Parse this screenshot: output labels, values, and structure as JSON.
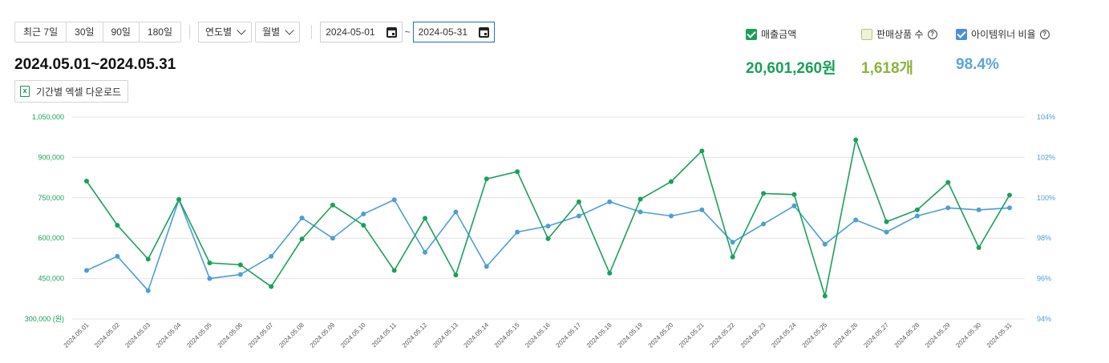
{
  "toolbar": {
    "period_buttons": [
      "최근 7일",
      "30일",
      "90일",
      "180일"
    ],
    "year_dropdown": "연도별",
    "month_dropdown": "월별",
    "start_date": "2024-05-01",
    "end_date": "2024-05-31",
    "tilde": "~"
  },
  "range_title": "2024.05.01~2024.05.31",
  "download_label": "기간별 엑셀 다운로드",
  "legend": {
    "sales": {
      "label": "매출금액",
      "checked": true,
      "color": "#1aa05a"
    },
    "units": {
      "label": "판매상품 수",
      "checked": false,
      "color": "#8db33a"
    },
    "winner": {
      "label": "아이템위너 비율",
      "checked": true,
      "color": "#4a9fd4"
    }
  },
  "stats": {
    "sales": "20,601,260원",
    "units": "1,618개",
    "winner": "98.4%"
  },
  "chart_data": {
    "type": "line",
    "categories": [
      "2024.05.01",
      "2024.05.02",
      "2024.05.03",
      "2024.05.04",
      "2024.05.05",
      "2024.05.06",
      "2024.05.07",
      "2024.05.08",
      "2024.05.09",
      "2024.05.10",
      "2024.05.11",
      "2024.05.12",
      "2024.05.13",
      "2024.05.14",
      "2024.05.15",
      "2024.05.16",
      "2024.05.17",
      "2024.05.18",
      "2024.05.19",
      "2024.05.20",
      "2024.05.21",
      "2024.05.22",
      "2024.05.23",
      "2024.05.24",
      "2024.05.25",
      "2024.05.26",
      "2024.05.27",
      "2024.05.28",
      "2024.05.29",
      "2024.05.30",
      "2024.05.31"
    ],
    "left_axis": {
      "ticks": [
        300000,
        450000,
        600000,
        750000,
        900000,
        1050000
      ],
      "tick_labels": [
        "300,000 (원)",
        "450,000",
        "600,000",
        "750,000",
        "900,000",
        "1,050,000"
      ],
      "range": [
        300000,
        1050000
      ],
      "color": "#1aa05a"
    },
    "right_axis": {
      "ticks": [
        94,
        96,
        98,
        100,
        102,
        104
      ],
      "tick_labels": [
        "94%",
        "96%",
        "98%",
        "100%",
        "102%",
        "104%"
      ],
      "range": [
        94,
        104
      ],
      "color": "#4a9fd4"
    },
    "series": [
      {
        "name": "매출금액",
        "axis": "left",
        "color": "#1aa05a",
        "values": [
          812000,
          648000,
          522000,
          744000,
          508000,
          501000,
          420000,
          597000,
          723000,
          648000,
          480000,
          674000,
          463000,
          820000,
          847000,
          598000,
          735000,
          470000,
          745000,
          810000,
          924000,
          530000,
          766000,
          762000,
          385000,
          965000,
          661000,
          705000,
          807000,
          565000,
          760000
        ]
      },
      {
        "name": "아이템위너 비율",
        "axis": "right",
        "color": "#4a9fd4",
        "values": [
          96.4,
          97.1,
          95.4,
          99.9,
          96.0,
          96.2,
          97.1,
          99.0,
          98.0,
          99.2,
          99.9,
          97.3,
          99.3,
          96.6,
          98.3,
          98.6,
          99.1,
          99.8,
          99.3,
          99.1,
          99.4,
          97.8,
          98.7,
          99.6,
          97.7,
          98.9,
          98.3,
          99.1,
          99.5,
          99.4,
          99.5
        ]
      }
    ],
    "grid": true
  }
}
